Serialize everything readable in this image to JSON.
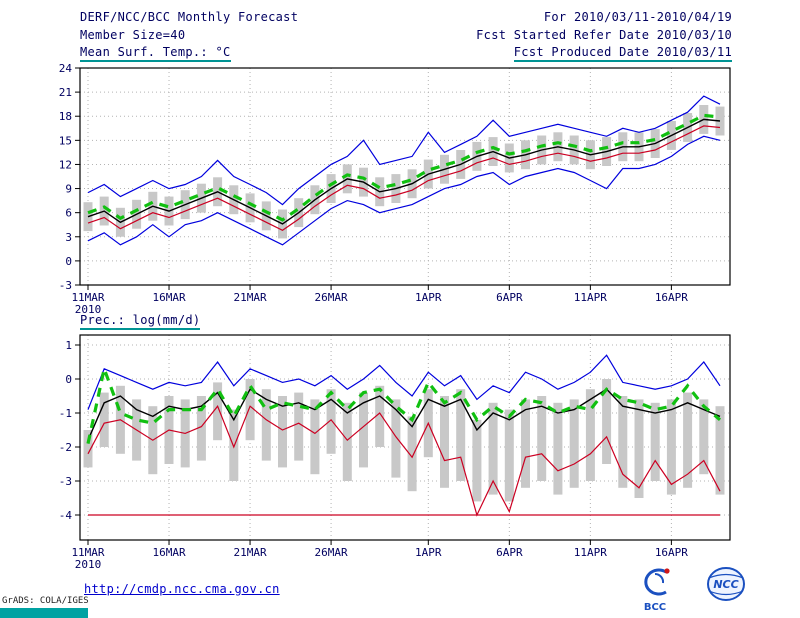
{
  "header": {
    "line1_left": "DERF/NCC/BCC Monthly Forecast",
    "line1_right": "For 2010/03/11-2010/04/19",
    "line2_left": "Member Size=40",
    "line2_right": "Fcst Started Refer Date 2010/03/10",
    "line3_left": "Mean Surf. Temp.: °C",
    "line3_right": "Fcst Produced Date 2010/03/11"
  },
  "footer": {
    "link": "http://cmdp.ncc.cma.gov.cn",
    "grads_credit": "GrADS: COLA/IGES",
    "logo_bcc": "BCC",
    "logo_ncc": "NCC"
  },
  "colors": {
    "text": "#000060",
    "teal_rule": "#009494",
    "grid": "#b3b3b3",
    "bar": "#c8c8c8",
    "blue_line": "#0000dd",
    "black_line": "#000000",
    "red_line": "#cc0022",
    "green_line": "#11c011",
    "link_blue": "#0000cc"
  },
  "chart_data": [
    {
      "type": "line",
      "title": "Mean Surf. Temp.: °C",
      "x_tick_labels": [
        "11MAR",
        "16MAR",
        "21MAR",
        "26MAR",
        "1APR",
        "6APR",
        "11APR",
        "16APR"
      ],
      "x_tick_positions": [
        0,
        5,
        10,
        15,
        21,
        26,
        31,
        36
      ],
      "x_year_label": "2010",
      "n_days": 40,
      "ylim": [
        -3,
        24
      ],
      "yticks": [
        24,
        21,
        18,
        15,
        12,
        9,
        6,
        3,
        0,
        -3
      ],
      "grid": true,
      "bars": {
        "name": "ensemble-spread",
        "color": "#c8c8c8",
        "low": [
          3.7,
          4.4,
          3.0,
          4.0,
          5.0,
          4.4,
          5.2,
          6.0,
          6.8,
          5.8,
          4.8,
          3.8,
          2.8,
          4.2,
          5.8,
          7.2,
          8.4,
          8.0,
          6.8,
          7.2,
          7.8,
          9.0,
          9.6,
          10.2,
          11.2,
          11.8,
          11.0,
          11.4,
          12.0,
          12.4,
          12.0,
          11.4,
          11.8,
          12.4,
          12.4,
          12.8,
          13.8,
          14.8,
          15.8,
          15.6
        ],
        "high": [
          7.3,
          8.0,
          6.6,
          7.6,
          8.6,
          8.0,
          8.8,
          9.6,
          10.4,
          9.4,
          8.4,
          7.4,
          6.4,
          7.8,
          9.4,
          10.8,
          12.0,
          11.6,
          10.4,
          10.8,
          11.4,
          12.6,
          13.2,
          13.8,
          14.8,
          15.4,
          14.6,
          15.0,
          15.6,
          16.0,
          15.6,
          15.0,
          15.4,
          16.0,
          16.0,
          16.4,
          17.4,
          18.4,
          19.4,
          19.2
        ]
      },
      "series": [
        {
          "name": "ensemble-max",
          "color": "#0000dd",
          "width": 1.2,
          "dash": false,
          "values": [
            8.5,
            9.5,
            8.0,
            9.0,
            10.0,
            9.0,
            9.5,
            10.5,
            12.5,
            10.5,
            9.5,
            8.5,
            7.0,
            9.0,
            10.5,
            12.0,
            13.0,
            15.0,
            12.0,
            12.5,
            13.0,
            16.0,
            13.5,
            14.5,
            15.5,
            17.5,
            15.5,
            16.0,
            16.5,
            17.0,
            16.5,
            16.0,
            15.5,
            16.5,
            16.0,
            16.5,
            17.5,
            18.5,
            20.5,
            19.5
          ]
        },
        {
          "name": "ensemble-min",
          "color": "#0000dd",
          "width": 1.2,
          "dash": false,
          "values": [
            2.5,
            3.5,
            2.0,
            3.0,
            4.5,
            3.0,
            4.5,
            5.0,
            6.0,
            5.0,
            4.0,
            3.0,
            2.0,
            3.5,
            5.0,
            6.5,
            7.5,
            7.0,
            6.0,
            6.5,
            7.0,
            8.0,
            9.0,
            9.5,
            10.5,
            11.0,
            9.5,
            10.5,
            11.0,
            11.5,
            11.0,
            10.0,
            9.0,
            11.5,
            11.5,
            12.0,
            13.0,
            14.5,
            15.5,
            15.0
          ]
        },
        {
          "name": "control-run",
          "color": "#cc0022",
          "width": 1.2,
          "dash": false,
          "values": [
            4.7,
            5.4,
            4.0,
            5.0,
            6.0,
            5.4,
            6.2,
            7.0,
            7.8,
            6.8,
            5.8,
            4.8,
            3.8,
            5.2,
            6.8,
            8.2,
            9.4,
            9.0,
            7.8,
            8.2,
            8.8,
            10.0,
            10.6,
            11.2,
            12.2,
            12.8,
            12.0,
            12.4,
            13.0,
            13.4,
            13.0,
            12.4,
            12.8,
            13.4,
            13.4,
            13.8,
            14.8,
            15.8,
            16.8,
            16.6
          ]
        },
        {
          "name": "ensemble-mean",
          "color": "#000000",
          "width": 1.4,
          "dash": false,
          "values": [
            5.5,
            6.2,
            4.8,
            5.8,
            6.8,
            6.2,
            7.0,
            7.8,
            8.6,
            7.6,
            6.6,
            5.6,
            4.6,
            6.0,
            7.6,
            9.0,
            10.2,
            9.8,
            8.6,
            9.0,
            9.6,
            10.8,
            11.4,
            12.0,
            13.0,
            13.6,
            12.8,
            13.2,
            13.8,
            14.2,
            13.8,
            13.2,
            13.6,
            14.2,
            14.2,
            14.6,
            15.6,
            16.6,
            17.6,
            17.4
          ]
        },
        {
          "name": "ensemble-median",
          "color": "#11c011",
          "width": 3.2,
          "dash": true,
          "values": [
            6.0,
            6.7,
            5.3,
            6.3,
            7.3,
            6.7,
            7.5,
            8.3,
            9.1,
            8.1,
            7.1,
            6.1,
            5.1,
            6.5,
            8.1,
            9.5,
            10.7,
            10.3,
            9.1,
            9.5,
            10.1,
            11.3,
            11.9,
            12.5,
            13.5,
            14.1,
            13.3,
            13.7,
            14.3,
            14.7,
            14.3,
            13.7,
            14.1,
            14.7,
            14.7,
            15.1,
            16.1,
            17.1,
            18.1,
            17.9
          ]
        }
      ]
    },
    {
      "type": "line",
      "title": "Prec.: log(mm/d)",
      "x_tick_labels": [
        "11MAR",
        "16MAR",
        "21MAR",
        "26MAR",
        "1APR",
        "6APR",
        "11APR",
        "16APR"
      ],
      "x_tick_positions": [
        0,
        5,
        10,
        15,
        21,
        26,
        31,
        36
      ],
      "x_year_label": "2010",
      "n_days": 40,
      "ylim": [
        -4,
        1
      ],
      "yticks": [
        1,
        0,
        -1,
        -2,
        -3,
        -4
      ],
      "grid": true,
      "floor": {
        "value": -4,
        "color": "#cc0022"
      },
      "bars": {
        "name": "ensemble-spread",
        "color": "#c8c8c8",
        "low": [
          -2.6,
          -2.0,
          -2.2,
          -2.4,
          -2.8,
          -2.5,
          -2.6,
          -2.4,
          -1.8,
          -3.0,
          -1.8,
          -2.4,
          -2.6,
          -2.4,
          -2.8,
          -2.2,
          -3.0,
          -2.6,
          -2.0,
          -2.9,
          -3.3,
          -2.3,
          -3.2,
          -3.0,
          -3.6,
          -3.4,
          -3.6,
          -3.2,
          -3.0,
          -3.4,
          -3.2,
          -3.0,
          -2.5,
          -3.2,
          -3.5,
          -3.0,
          -3.4,
          -3.2,
          -2.8,
          -3.4
        ],
        "high": [
          -1.5,
          -0.4,
          -0.2,
          -0.6,
          -0.8,
          -0.5,
          -0.6,
          -0.5,
          -0.1,
          -0.9,
          0.0,
          -0.3,
          -0.5,
          -0.4,
          -0.6,
          -0.3,
          -0.7,
          -0.4,
          -0.2,
          -0.6,
          -1.1,
          -0.3,
          -0.5,
          -0.3,
          -1.2,
          -0.7,
          -0.9,
          -0.6,
          -0.5,
          -0.7,
          -0.6,
          -0.3,
          0.0,
          -0.5,
          -0.6,
          -0.7,
          -0.6,
          -0.4,
          -0.6,
          -0.8
        ]
      },
      "series": [
        {
          "name": "ensemble-max",
          "color": "#0000dd",
          "width": 1.2,
          "dash": false,
          "values": [
            -0.9,
            0.3,
            0.1,
            -0.1,
            -0.3,
            -0.1,
            -0.2,
            -0.1,
            0.5,
            -0.2,
            0.3,
            0.1,
            -0.1,
            0.0,
            -0.2,
            0.1,
            -0.3,
            0.0,
            0.4,
            -0.1,
            -0.5,
            0.2,
            -0.2,
            0.1,
            -0.6,
            -0.2,
            -0.4,
            0.2,
            0.0,
            -0.3,
            -0.1,
            0.2,
            0.7,
            -0.1,
            -0.2,
            -0.3,
            -0.2,
            0.0,
            0.5,
            -0.2
          ]
        },
        {
          "name": "control-run",
          "color": "#cc0022",
          "width": 1.2,
          "dash": false,
          "values": [
            -2.2,
            -1.3,
            -1.2,
            -1.5,
            -1.8,
            -1.5,
            -1.6,
            -1.4,
            -0.8,
            -2.0,
            -0.8,
            -1.2,
            -1.5,
            -1.3,
            -1.6,
            -1.2,
            -1.8,
            -1.4,
            -1.0,
            -1.7,
            -2.3,
            -1.3,
            -2.4,
            -2.3,
            -4.0,
            -3.0,
            -3.9,
            -2.3,
            -2.2,
            -2.7,
            -2.5,
            -2.2,
            -1.7,
            -2.8,
            -3.2,
            -2.4,
            -3.1,
            -2.8,
            -2.4,
            -3.3
          ]
        },
        {
          "name": "ensemble-mean",
          "color": "#000000",
          "width": 1.4,
          "dash": false,
          "values": [
            -1.8,
            -0.7,
            -0.5,
            -0.9,
            -1.1,
            -0.8,
            -0.9,
            -0.8,
            -0.4,
            -1.2,
            -0.3,
            -0.6,
            -0.8,
            -0.7,
            -0.9,
            -0.6,
            -1.0,
            -0.7,
            -0.5,
            -0.9,
            -1.4,
            -0.6,
            -0.8,
            -0.6,
            -1.5,
            -1.0,
            -1.2,
            -0.9,
            -0.8,
            -1.0,
            -0.9,
            -0.6,
            -0.3,
            -0.8,
            -0.9,
            -1.0,
            -0.9,
            -0.7,
            -0.9,
            -1.1
          ]
        },
        {
          "name": "ensemble-median",
          "color": "#11c011",
          "width": 3.2,
          "dash": true,
          "values": [
            -1.9,
            0.3,
            -1.0,
            -1.2,
            -1.3,
            -0.9,
            -0.9,
            -0.9,
            -0.3,
            -1.1,
            -0.2,
            -0.9,
            -0.7,
            -0.8,
            -0.9,
            -0.4,
            -0.9,
            -0.4,
            -0.3,
            -0.8,
            -1.2,
            -0.1,
            -0.7,
            -0.4,
            -1.2,
            -0.8,
            -1.1,
            -0.6,
            -0.7,
            -1.0,
            -0.8,
            -0.9,
            -0.3,
            -0.6,
            -0.7,
            -0.9,
            -0.8,
            -0.2,
            -0.8,
            -1.2
          ]
        }
      ]
    }
  ]
}
